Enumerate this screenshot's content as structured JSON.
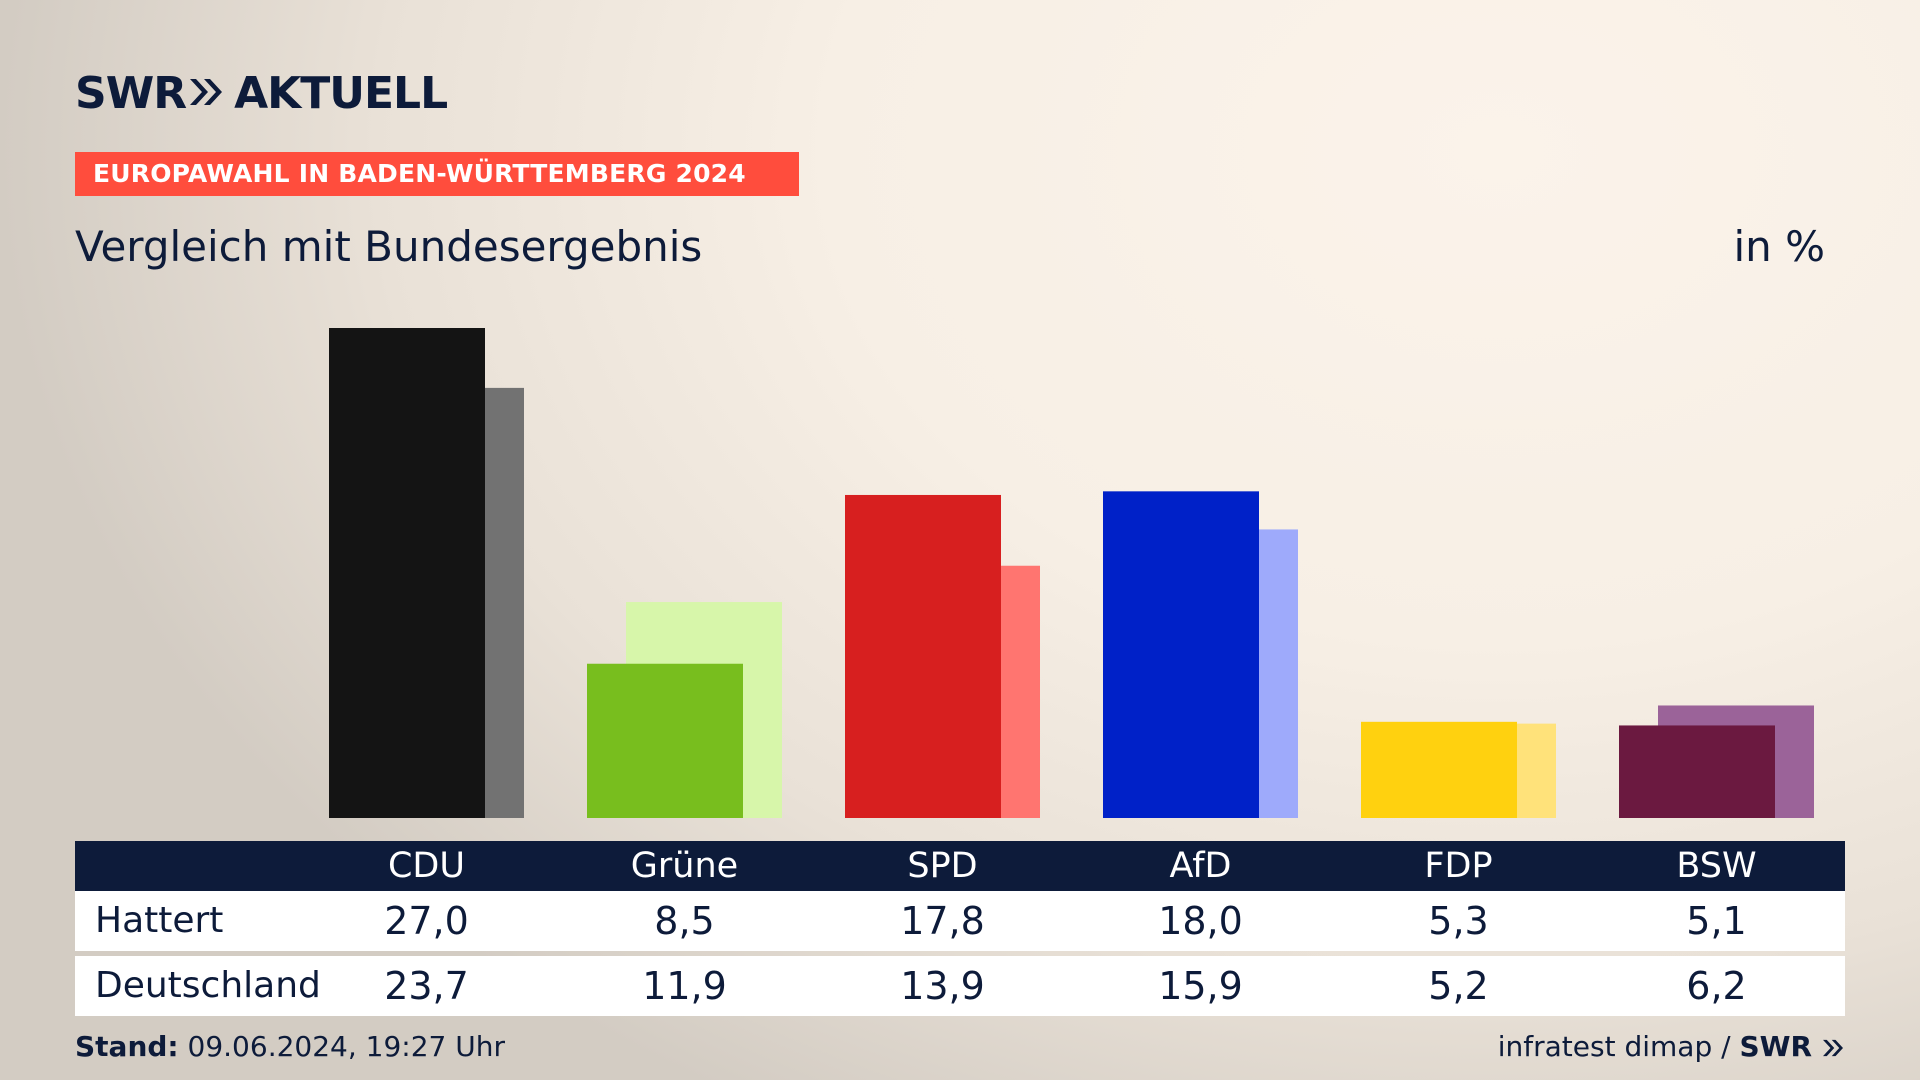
{
  "brand": {
    "name": "SWR",
    "suffix": "AKTUELL"
  },
  "header": {
    "subtitle": "EUROPAWAHL IN BADEN-WÜRTTEMBERG 2024",
    "title": "Vergleich mit Bundesergebnis",
    "unit": "in %"
  },
  "table": {
    "rows": [
      {
        "label": "Hattert",
        "values": [
          "27,0",
          "8,5",
          "17,8",
          "18,0",
          "5,3",
          "5,1"
        ]
      },
      {
        "label": "Deutschland",
        "values": [
          "23,7",
          "11,9",
          "13,9",
          "15,9",
          "5,2",
          "6,2"
        ]
      }
    ]
  },
  "footer": {
    "stand_label": "Stand:",
    "stand_value": "09.06.2024, 19:27 Uhr",
    "source": "infratest dimap /",
    "source_brand": "SWR"
  },
  "chart_data": {
    "type": "bar",
    "categories": [
      "CDU",
      "Grüne",
      "SPD",
      "AfD",
      "FDP",
      "BSW"
    ],
    "series": [
      {
        "name": "Hattert",
        "values": [
          27.0,
          8.5,
          17.8,
          18.0,
          5.3,
          5.1
        ],
        "colors": [
          "#141414",
          "#78be1e",
          "#d71f1f",
          "#0021c8",
          "#ffd10f",
          "#6b1940"
        ]
      },
      {
        "name": "Deutschland",
        "values": [
          23.7,
          11.9,
          13.9,
          15.9,
          5.2,
          6.2
        ],
        "colors": [
          "#727272",
          "#d7f6aa",
          "#ff7570",
          "#9eaafb",
          "#ffe27a",
          "#9b6399"
        ]
      }
    ],
    "xlabel": "",
    "ylabel": "",
    "ylim": [
      0,
      27.0
    ],
    "grid": false,
    "legend": "table-below"
  }
}
